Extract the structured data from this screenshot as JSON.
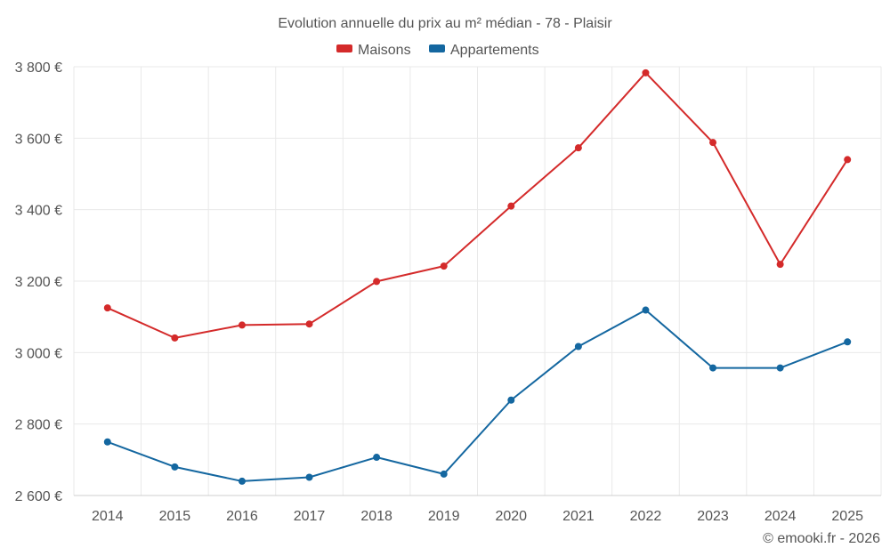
{
  "chart_data": {
    "type": "line",
    "title": "Evolution annuelle du prix au m² médian - 78 - Plaisir",
    "categories": [
      "2014",
      "2015",
      "2016",
      "2017",
      "2018",
      "2019",
      "2020",
      "2021",
      "2022",
      "2023",
      "2024",
      "2025"
    ],
    "series": [
      {
        "name": "Maisons",
        "color": "#d42a2a",
        "values": [
          3125,
          3041,
          3077,
          3080,
          3199,
          3242,
          3410,
          3573,
          3783,
          3588,
          3247,
          3540
        ]
      },
      {
        "name": "Appartements",
        "color": "#1467a0",
        "values": [
          2750,
          2680,
          2640,
          2651,
          2707,
          2660,
          2867,
          3017,
          3119,
          2957,
          2957,
          3030
        ]
      }
    ],
    "ylim": [
      2600,
      3800
    ],
    "yticks": [
      2600,
      2800,
      3000,
      3200,
      3400,
      3600,
      3800
    ],
    "ytick_labels": [
      "2 600 €",
      "2 800 €",
      "3 000 €",
      "3 200 €",
      "3 400 €",
      "3 600 €",
      "3 800 €"
    ],
    "xlabel": "",
    "ylabel": "",
    "grid": true,
    "legend_position": "top-center"
  },
  "credit": "© emooki.fr - 2026"
}
